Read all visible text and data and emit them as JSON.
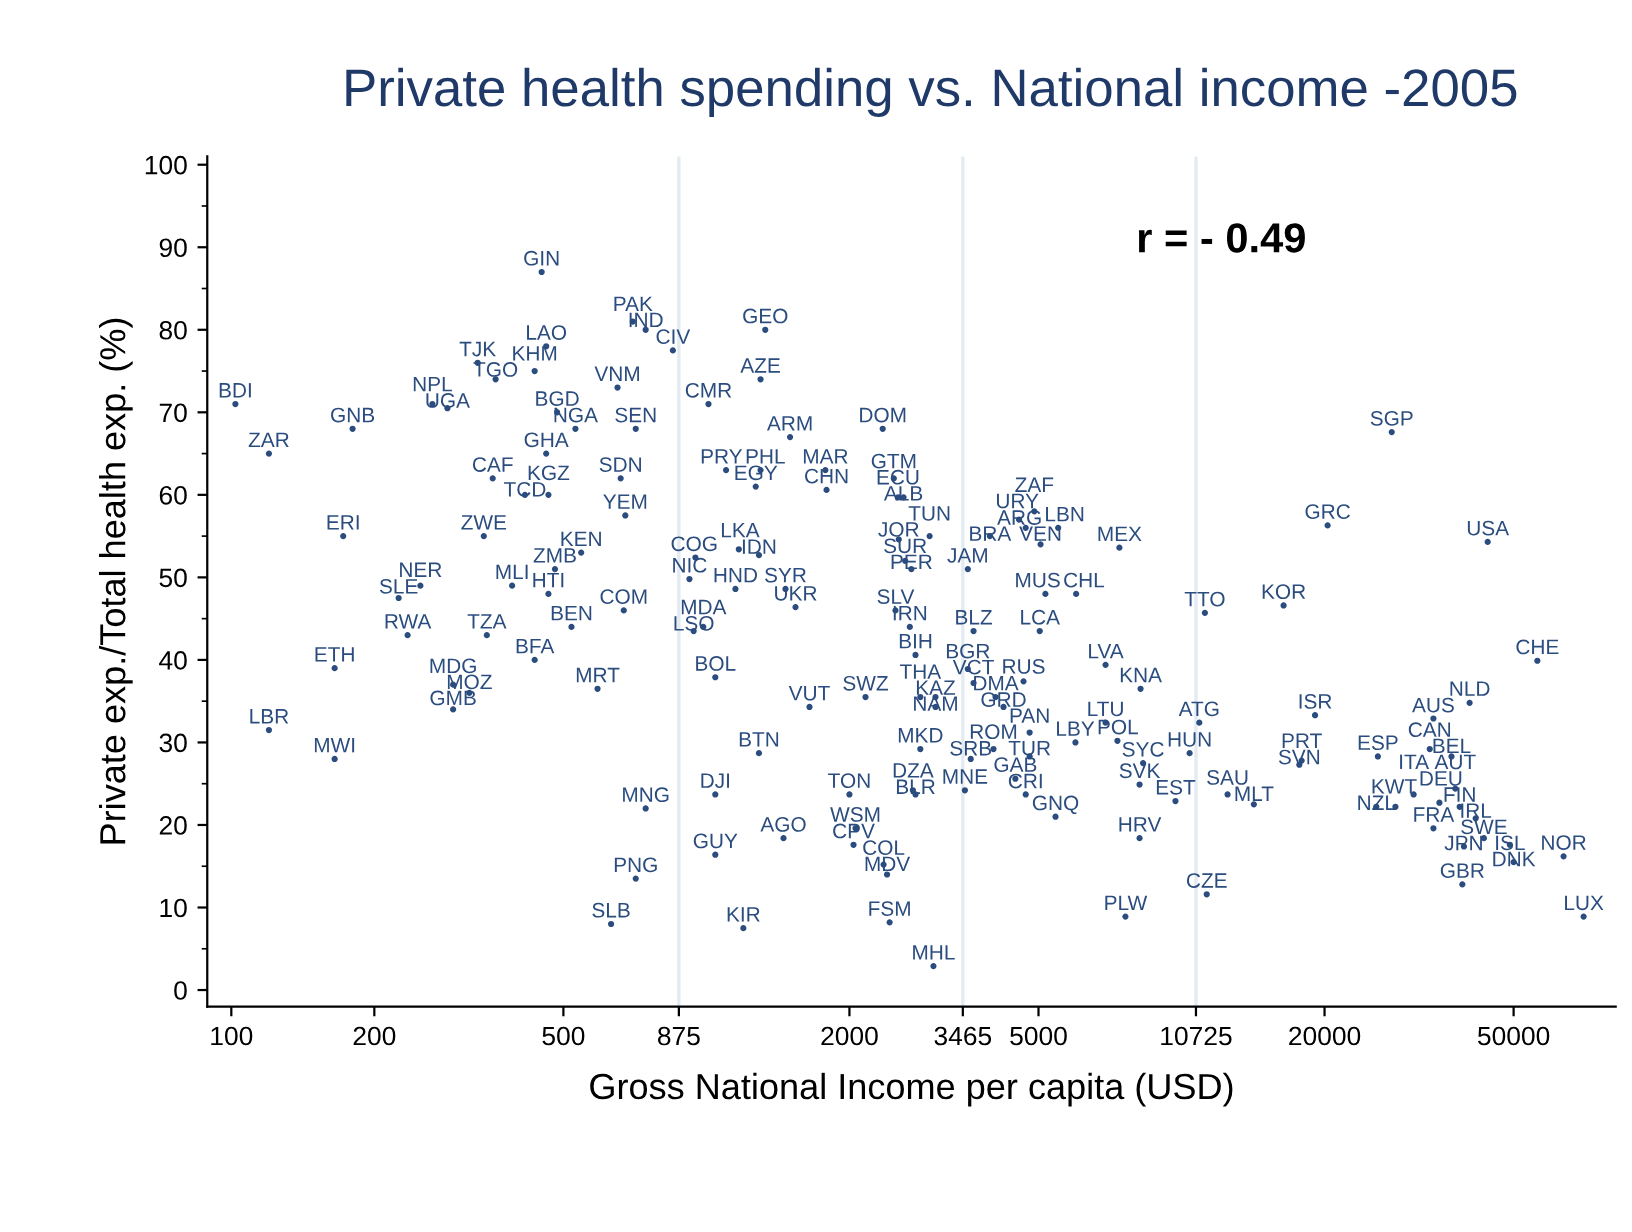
{
  "chart_data": {
    "type": "scatter",
    "title": "Private health spending vs. National income -2005",
    "xlabel": "Gross National Income per capita (USD)",
    "ylabel": "Private exp./Total health exp. (%)",
    "annotations": [
      "r = - 0.49"
    ],
    "log": "x",
    "xlim": [
      89,
      82000
    ],
    "ylim": [
      -2,
      101
    ],
    "xticks": [
      100,
      200,
      500,
      875,
      2000,
      3465,
      5000,
      10725,
      20000,
      50000
    ],
    "yticks": [
      0,
      10,
      20,
      30,
      40,
      50,
      60,
      70,
      80,
      90,
      100
    ],
    "ref_lines": [
      {
        "axis": "x",
        "value": 875,
        "color": "#e3ebf2"
      },
      {
        "axis": "x",
        "value": 3465,
        "color": "#e3ebf2"
      },
      {
        "axis": "x",
        "value": 10725,
        "color": "#e3ebf2"
      }
    ],
    "grid": false,
    "marker": "circle",
    "series": [
      {
        "color": "#2b4c7e",
        "x": [
          450,
          700,
          745,
          850,
          460,
          330,
          435,
          360,
          650,
          102,
          265,
          285,
          485,
          530,
          710,
          180,
          120,
          460,
          355,
          660,
          415,
          465,
          675,
          172,
          340,
          545,
          480,
          250,
          225,
          390,
          465,
          670,
          235,
          345,
          520,
          435,
          165,
          293,
          317,
          293,
          590,
          120,
          165,
          745,
          710,
          630,
          1330,
          1300,
          1010,
          1500,
          2350,
          1100,
          1300,
          1270,
          1780,
          1790,
          2480,
          2600,
          2530,
          2950,
          2540,
          2620,
          2700,
          3550,
          3950,
          4900,
          5500,
          5050,
          7400,
          4550,
          4700,
          1170,
          1290,
          948,
          921,
          1151,
          1467,
          1540,
          5170,
          6000,
          2500,
          2680,
          3650,
          5030,
          985,
          940,
          2755,
          3550,
          6920,
          8200,
          4650,
          3650,
          1044,
          1648,
          2162,
          3035,
          2820,
          3035,
          4060,
          4220,
          1290,
          2820,
          4020,
          3600,
          4790,
          4790,
          5980,
          7330,
          6920,
          4470,
          4700,
          2720,
          2755,
          3500,
          5430,
          1044,
          2000,
          1453,
          2060,
          2040,
          1044,
          2360,
          2400,
          1196,
          2430,
          3005,
          8160,
          7620,
          8300,
          8160,
          11200,
          16400,
          56100,
          40400,
          33900,
          19100,
          10900,
          10400,
          9710,
          12500,
          14200,
          17900,
          17700,
          25900,
          33300,
          37000,
          25700,
          28200,
          30800,
          37700,
          38500,
          34900,
          41600,
          33900,
          39300,
          43300,
          49100,
          50000,
          63700,
          39000,
          70200,
          11300,
          27700,
          20300,
          44100
        ],
        "values": [
          87,
          81,
          80,
          77.5,
          78,
          76,
          75,
          74,
          73,
          71,
          71,
          70.5,
          70,
          68,
          68,
          68,
          65,
          65,
          62,
          62,
          60,
          60,
          57.5,
          55,
          55,
          53,
          51,
          49,
          47.5,
          49,
          48,
          46,
          43,
          43,
          44,
          40,
          39,
          37,
          36,
          34,
          36.5,
          31.5,
          28,
          22,
          13.5,
          8,
          80,
          74,
          71,
          67,
          68,
          63,
          63,
          61,
          63,
          60.6,
          62,
          59.7,
          59.7,
          55,
          54.6,
          52,
          51,
          51,
          55,
          58,
          56,
          54,
          53.6,
          57,
          56,
          53.4,
          52.7,
          52.4,
          49.8,
          48.6,
          48.6,
          46.4,
          48,
          48,
          46,
          44,
          43.5,
          43.5,
          44,
          43.5,
          40.6,
          38.9,
          39.4,
          36.5,
          37.4,
          37.2,
          37.9,
          34.3,
          35.5,
          35.5,
          35.5,
          34.3,
          35.5,
          34.3,
          28.7,
          29.2,
          29.2,
          28,
          28.3,
          31.2,
          30,
          30.2,
          32.4,
          25.6,
          23.7,
          24.2,
          23.7,
          24.2,
          21,
          23.7,
          23.7,
          18.4,
          19.6,
          17.6,
          16.4,
          15.2,
          14,
          7.5,
          8.2,
          2.9,
          18.4,
          8.9,
          27.5,
          24.9,
          45.7,
          46.6,
          39.9,
          34.8,
          32.9,
          33.3,
          32.4,
          28.7,
          22.9,
          23.7,
          22.5,
          27.8,
          27.3,
          28.3,
          29.2,
          28.3,
          22.2,
          22.2,
          23.7,
          24.4,
          22.2,
          22.7,
          20.8,
          19.6,
          17.4,
          18.4,
          17.6,
          15.5,
          16.2,
          12.8,
          8.9,
          11.6,
          67.6,
          56.3,
          54.3
        ],
        "value_labels": [
          "GIN",
          "PAK",
          "IND",
          "CIV",
          "LAO",
          "TJK",
          "KHM",
          "TGO",
          "VNM",
          "BDI",
          "NPL",
          "UGA",
          "BGD",
          "NGA",
          "SEN",
          "GNB",
          "ZAR",
          "GHA",
          "CAF",
          "SDN",
          "TCD",
          "KGZ",
          "YEM",
          "ERI",
          "ZWE",
          "KEN",
          "ZMB",
          "NER",
          "SLE",
          "MLI",
          "HTI",
          "COM",
          "RWA",
          "TZA",
          "BEN",
          "BFA",
          "ETH",
          "MDG",
          "MOZ",
          "GMB",
          "MRT",
          "LBR",
          "MWI",
          "MNG",
          "PNG",
          "SLB",
          "GEO",
          "AZE",
          "CMR",
          "ARM",
          "DOM",
          "PRY",
          "PHL",
          "EGY",
          "MAR",
          "CHN",
          "GTM",
          "ALB",
          "ECU",
          "TUN",
          "JOR",
          "SUR",
          "PER",
          "JAM",
          "BRA",
          "ZAF",
          "LBN",
          "VEN",
          "MEX",
          "URY",
          "ARG",
          "LKA",
          "IDN",
          "COG",
          "NIC",
          "HND",
          "SYR",
          "UKR",
          "MUS",
          "CHL",
          "SLV",
          "IRN",
          "BLZ",
          "LCA",
          "MDA",
          "LSO",
          "BIH",
          "BGR",
          "LVA",
          "KNA",
          "RUS",
          "VCT",
          "BOL",
          "VUT",
          "SWZ",
          "KAZ",
          "THA",
          "NAM",
          "DMA",
          "GRD",
          "BTN",
          "MKD",
          "ROM",
          "SRB",
          "TUR",
          "PAN",
          "LBY",
          "POL",
          "LTU",
          "GAB",
          "CRI",
          "DZA",
          "BLR",
          "MNE",
          "GNQ",
          "DJI",
          "TON",
          "AGO",
          "WSM",
          "CPV",
          "GUY",
          "COL",
          "MDV",
          "KIR",
          "FSM",
          "MHL",
          "HRV",
          "PLW",
          "SYC",
          "SVK",
          "TTO",
          "KOR",
          "CHE",
          "NLD",
          "AUS",
          "ISR",
          "ATG",
          "HUN",
          "EST",
          "SAU",
          "MLT",
          "PRT",
          "SVN",
          "ESP",
          "CAN",
          "BEL",
          "NZL",
          "KWT",
          "ITA",
          "AUT",
          "FIN",
          "DEU",
          "IRL",
          "FRA",
          "JPN",
          "SWE",
          "ISL",
          "DNK",
          "NOR",
          "GBR",
          "LUX",
          "CZE",
          "SGP",
          "GRC",
          "USA"
        ]
      }
    ]
  }
}
